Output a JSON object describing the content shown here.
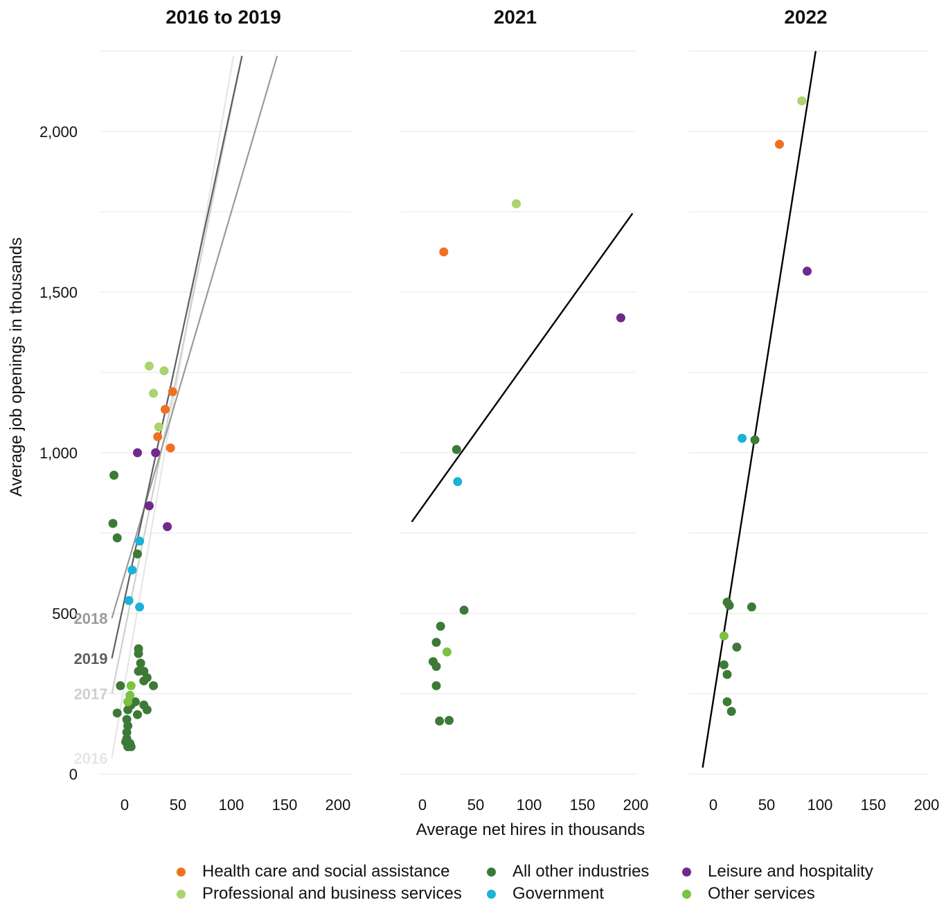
{
  "colors": {
    "health": "#f07022",
    "professional": "#a9d46e",
    "other_industries": "#3d7a37",
    "government": "#1ab2d6",
    "leisure": "#6f2a8c",
    "other_services": "#7bc142",
    "fit_2021": "#000000",
    "fit_2022": "#000000",
    "fit_2016": "#e6e6e6",
    "fit_2017": "#cfcfcf",
    "fit_2018": "#9a9a9a",
    "fit_2019": "#5e5e5e",
    "grid": "#e5e5e5"
  },
  "y_axis": {
    "label": "Average job openings in thousands",
    "ticks": [
      "0",
      "500",
      "1,000",
      "1,500",
      "2,000"
    ]
  },
  "x_axis": {
    "label": "Average net hires in thousands",
    "ticks": [
      "0",
      "50",
      "100",
      "150",
      "200"
    ]
  },
  "legend": [
    {
      "key": "health",
      "label": "Health care and social assistance"
    },
    {
      "key": "other_industries",
      "label": "All other industries"
    },
    {
      "key": "leisure",
      "label": "Leisure and hospitality"
    },
    {
      "key": "professional",
      "label": "Professional and business services"
    },
    {
      "key": "government",
      "label": "Government"
    },
    {
      "key": "other_services",
      "label": "Other services"
    }
  ],
  "chart_data": [
    {
      "type": "scatter",
      "title": "2016 to 2019",
      "xlim": [
        -10,
        200
      ],
      "ylim": [
        0,
        2250
      ],
      "points": [
        {
          "s": "health",
          "x": 45,
          "y": 1190
        },
        {
          "s": "health",
          "x": 38,
          "y": 1135
        },
        {
          "s": "health",
          "x": 31,
          "y": 1050
        },
        {
          "s": "health",
          "x": 43,
          "y": 1015
        },
        {
          "s": "professional",
          "x": 23,
          "y": 1270
        },
        {
          "s": "professional",
          "x": 37,
          "y": 1255
        },
        {
          "s": "professional",
          "x": 27,
          "y": 1185
        },
        {
          "s": "professional",
          "x": 32,
          "y": 1080
        },
        {
          "s": "leisure",
          "x": 12,
          "y": 1000
        },
        {
          "s": "leisure",
          "x": 29,
          "y": 1000
        },
        {
          "s": "leisure",
          "x": 23,
          "y": 835
        },
        {
          "s": "leisure",
          "x": 40,
          "y": 770
        },
        {
          "s": "government",
          "x": 14,
          "y": 725
        },
        {
          "s": "government",
          "x": 7,
          "y": 635
        },
        {
          "s": "government",
          "x": 4,
          "y": 540
        },
        {
          "s": "government",
          "x": 14,
          "y": 520
        },
        {
          "s": "other_industries",
          "x": -10,
          "y": 930
        },
        {
          "s": "other_industries",
          "x": -11,
          "y": 780
        },
        {
          "s": "other_industries",
          "x": -7,
          "y": 735
        },
        {
          "s": "other_industries",
          "x": 12,
          "y": 685
        },
        {
          "s": "other_industries",
          "x": 13,
          "y": 390
        },
        {
          "s": "other_industries",
          "x": 13,
          "y": 375
        },
        {
          "s": "other_industries",
          "x": 15,
          "y": 345
        },
        {
          "s": "other_industries",
          "x": 13,
          "y": 320
        },
        {
          "s": "other_industries",
          "x": 18,
          "y": 320
        },
        {
          "s": "other_industries",
          "x": 21,
          "y": 300
        },
        {
          "s": "other_industries",
          "x": 18,
          "y": 290
        },
        {
          "s": "other_industries",
          "x": 27,
          "y": 275
        },
        {
          "s": "other_industries",
          "x": -4,
          "y": 275
        },
        {
          "s": "other_industries",
          "x": 10,
          "y": 225
        },
        {
          "s": "other_industries",
          "x": 18,
          "y": 215
        },
        {
          "s": "other_industries",
          "x": 21,
          "y": 200
        },
        {
          "s": "other_industries",
          "x": -7,
          "y": 190
        },
        {
          "s": "other_industries",
          "x": 6,
          "y": 215
        },
        {
          "s": "other_industries",
          "x": 3,
          "y": 200
        },
        {
          "s": "other_industries",
          "x": 12,
          "y": 185
        },
        {
          "s": "other_industries",
          "x": 2,
          "y": 170
        },
        {
          "s": "other_industries",
          "x": 3,
          "y": 150
        },
        {
          "s": "other_industries",
          "x": 2,
          "y": 130
        },
        {
          "s": "other_industries",
          "x": 2,
          "y": 110
        },
        {
          "s": "other_industries",
          "x": 1,
          "y": 100
        },
        {
          "s": "other_industries",
          "x": 5,
          "y": 95
        },
        {
          "s": "other_industries",
          "x": 3,
          "y": 85
        },
        {
          "s": "other_industries",
          "x": 6,
          "y": 85
        },
        {
          "s": "other_services",
          "x": 6,
          "y": 275
        },
        {
          "s": "other_services",
          "x": 5,
          "y": 245
        },
        {
          "s": "other_services",
          "x": 3,
          "y": 225
        }
      ],
      "fit_lines": [
        {
          "label": "2016",
          "key": "fit_2016",
          "x0": -12,
          "y0": 50,
          "x1": 102,
          "y1": 2235
        },
        {
          "label": "2017",
          "key": "fit_2017",
          "x0": -12,
          "y0": 250,
          "x1": 110,
          "y1": 2235
        },
        {
          "label": "2018",
          "key": "fit_2018",
          "x0": -12,
          "y0": 485,
          "x1": 143,
          "y1": 2235
        },
        {
          "label": "2019",
          "key": "fit_2019",
          "x0": -12,
          "y0": 360,
          "x1": 110,
          "y1": 2235
        }
      ]
    },
    {
      "type": "scatter",
      "title": "2021",
      "xlim": [
        -10,
        200
      ],
      "ylim": [
        0,
        2250
      ],
      "points": [
        {
          "s": "professional",
          "x": 88,
          "y": 1775
        },
        {
          "s": "health",
          "x": 20,
          "y": 1625
        },
        {
          "s": "leisure",
          "x": 186,
          "y": 1420
        },
        {
          "s": "other_industries",
          "x": 32,
          "y": 1010
        },
        {
          "s": "government",
          "x": 33,
          "y": 910
        },
        {
          "s": "other_industries",
          "x": 39,
          "y": 510
        },
        {
          "s": "other_industries",
          "x": 17,
          "y": 460
        },
        {
          "s": "other_industries",
          "x": 13,
          "y": 410
        },
        {
          "s": "other_services",
          "x": 23,
          "y": 380
        },
        {
          "s": "other_industries",
          "x": 10,
          "y": 350
        },
        {
          "s": "other_industries",
          "x": 13,
          "y": 335
        },
        {
          "s": "other_industries",
          "x": 13,
          "y": 275
        },
        {
          "s": "other_industries",
          "x": 16,
          "y": 165
        },
        {
          "s": "other_industries",
          "x": 25,
          "y": 167
        }
      ],
      "fit_lines": [
        {
          "label": "",
          "key": "fit_2021",
          "x0": -10,
          "y0": 785,
          "x1": 197,
          "y1": 1745
        }
      ]
    },
    {
      "type": "scatter",
      "title": "2022",
      "xlim": [
        -10,
        200
      ],
      "ylim": [
        0,
        2250
      ],
      "points": [
        {
          "s": "professional",
          "x": 83,
          "y": 2095
        },
        {
          "s": "health",
          "x": 62,
          "y": 1960
        },
        {
          "s": "leisure",
          "x": 88,
          "y": 1565
        },
        {
          "s": "government",
          "x": 27,
          "y": 1045
        },
        {
          "s": "other_industries",
          "x": 39,
          "y": 1040
        },
        {
          "s": "other_industries",
          "x": 13,
          "y": 535
        },
        {
          "s": "other_industries",
          "x": 15,
          "y": 525
        },
        {
          "s": "other_industries",
          "x": 36,
          "y": 520
        },
        {
          "s": "other_services",
          "x": 10,
          "y": 430
        },
        {
          "s": "other_industries",
          "x": 22,
          "y": 395
        },
        {
          "s": "other_industries",
          "x": 10,
          "y": 340
        },
        {
          "s": "other_industries",
          "x": 13,
          "y": 310
        },
        {
          "s": "other_industries",
          "x": 13,
          "y": 225
        },
        {
          "s": "other_industries",
          "x": 17,
          "y": 195
        }
      ],
      "fit_lines": [
        {
          "label": "",
          "key": "fit_2022",
          "x0": -10,
          "y0": 20,
          "x1": 96,
          "y1": 2250
        }
      ]
    }
  ]
}
